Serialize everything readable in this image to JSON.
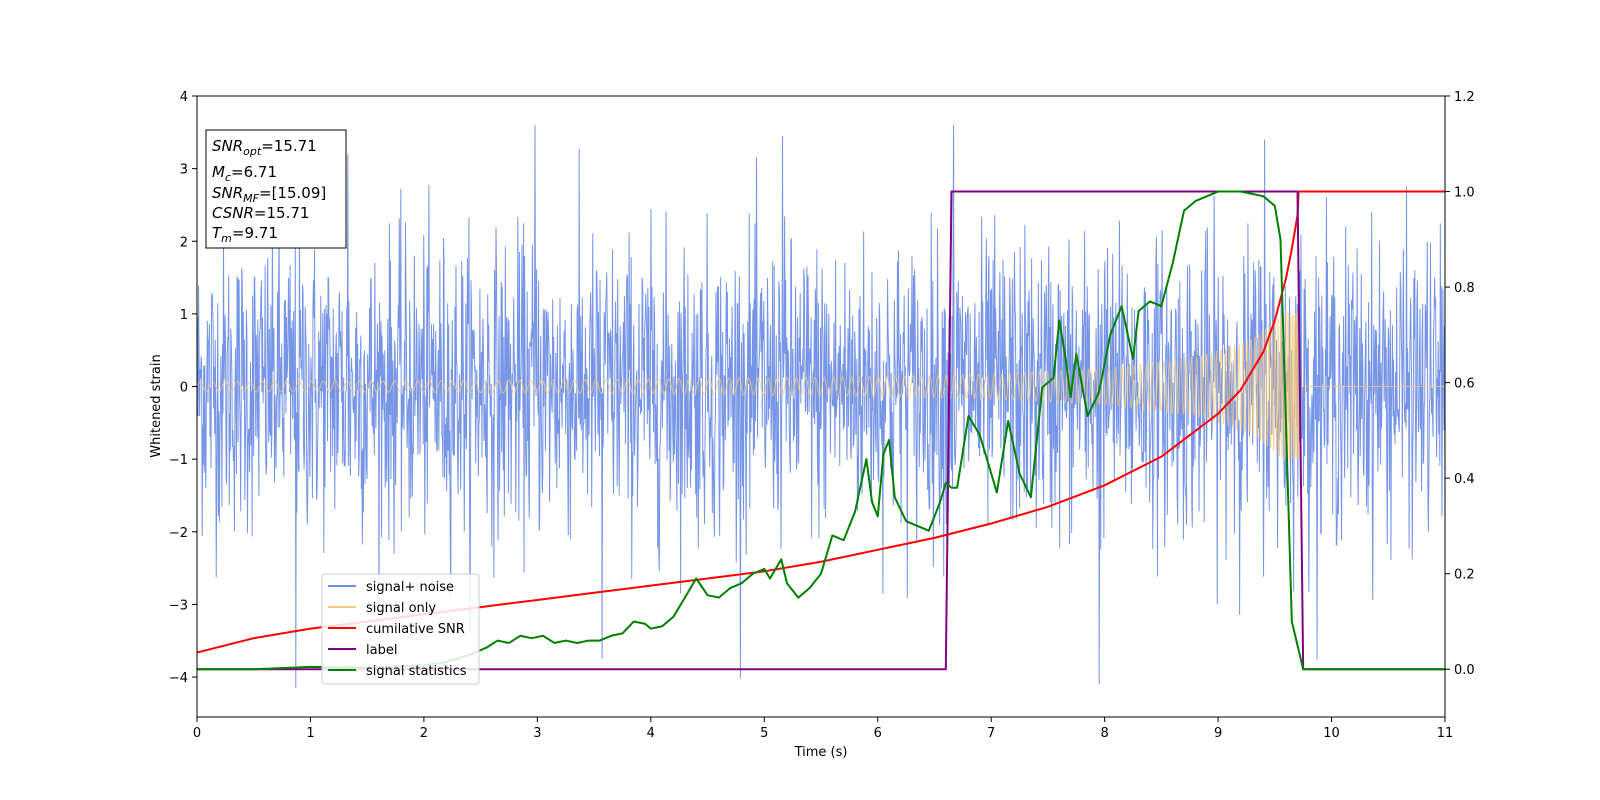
{
  "chart_data": {
    "type": "line",
    "xlabel": "Time (s)",
    "ylabel": "Whitened strain",
    "xlim": [
      0,
      11
    ],
    "ylim": [
      -4.55,
      4.0
    ],
    "y2lim": [
      -0.1,
      1.2
    ],
    "xticks": [
      0,
      1,
      2,
      3,
      4,
      5,
      6,
      7,
      8,
      9,
      10,
      11
    ],
    "yticks": [
      -4,
      -3,
      -2,
      -1,
      0,
      1,
      2,
      3,
      4
    ],
    "y2ticks": [
      "0.0",
      "0.2",
      "0.4",
      "0.6",
      "0.8",
      "1.0",
      "1.2"
    ],
    "grid": false,
    "legend_position": "lower-left",
    "annotation": [
      {
        "main": "SNR",
        "sub": "opt",
        "rest": "=15.71"
      },
      {
        "main": "M",
        "sub": "c",
        "rest": "=6.71"
      },
      {
        "main": "SNR",
        "sub": "MF",
        "rest": "=[15.09]"
      },
      {
        "main": "CSNR",
        "sub": "",
        "rest": "=15.71"
      },
      {
        "main": "T",
        "sub": "m",
        "rest": "=9.71"
      }
    ],
    "series": [
      {
        "name": "signal+ noise",
        "color": "#6f8fe6",
        "axis": "left",
        "noise_std": 1.0,
        "peak_spikes": [
          [
            0.87,
            -4.15
          ],
          [
            1.33,
            3.2
          ],
          [
            2.98,
            3.6
          ],
          [
            3.57,
            -3.75
          ],
          [
            5.16,
            3.45
          ],
          [
            6.67,
            3.6
          ],
          [
            7.95,
            -4.1
          ],
          [
            9.41,
            3.4
          ]
        ]
      },
      {
        "name": "signal only",
        "color": "#f5c97a",
        "axis": "left",
        "envelope": [
          [
            0,
            0.07
          ],
          [
            2,
            0.08
          ],
          [
            4,
            0.1
          ],
          [
            6,
            0.14
          ],
          [
            7,
            0.17
          ],
          [
            8,
            0.25
          ],
          [
            8.8,
            0.4
          ],
          [
            9.3,
            0.65
          ],
          [
            9.6,
            1.05
          ],
          [
            9.71,
            1.0
          ]
        ],
        "merger_time": 9.71
      },
      {
        "name": "cumilative SNR",
        "color": "#ff0000",
        "axis": "right",
        "x": [
          0,
          0.5,
          1,
          1.5,
          2,
          2.5,
          3,
          3.5,
          4,
          4.5,
          5,
          5.5,
          6,
          6.5,
          7,
          7.5,
          8,
          8.5,
          9,
          9.2,
          9.4,
          9.5,
          9.6,
          9.65,
          9.7,
          9.71,
          10,
          11
        ],
        "y": [
          0.035,
          0.065,
          0.085,
          0.1,
          0.115,
          0.13,
          0.145,
          0.16,
          0.175,
          0.19,
          0.205,
          0.225,
          0.25,
          0.275,
          0.305,
          0.34,
          0.385,
          0.445,
          0.535,
          0.585,
          0.665,
          0.73,
          0.82,
          0.88,
          0.95,
          1.0,
          1.0,
          1.0
        ]
      },
      {
        "name": "label",
        "color": "#800080",
        "axis": "right",
        "x": [
          0,
          6.6,
          6.65,
          9.7,
          9.75,
          11
        ],
        "y": [
          0,
          0,
          1,
          1,
          0,
          0
        ]
      },
      {
        "name": "signal statistics",
        "color": "#008000",
        "axis": "right",
        "x": [
          0,
          0.5,
          1,
          1.5,
          2,
          2.2,
          2.4,
          2.55,
          2.65,
          2.75,
          2.85,
          2.95,
          3.05,
          3.15,
          3.25,
          3.35,
          3.45,
          3.55,
          3.65,
          3.75,
          3.85,
          3.95,
          4.0,
          4.1,
          4.2,
          4.3,
          4.4,
          4.5,
          4.6,
          4.7,
          4.8,
          4.9,
          5.0,
          5.05,
          5.15,
          5.2,
          5.3,
          5.4,
          5.5,
          5.6,
          5.7,
          5.8,
          5.9,
          5.95,
          6.0,
          6.05,
          6.1,
          6.15,
          6.25,
          6.35,
          6.45,
          6.55,
          6.6,
          6.65,
          6.7,
          6.8,
          6.9,
          7.0,
          7.05,
          7.15,
          7.25,
          7.35,
          7.45,
          7.55,
          7.6,
          7.65,
          7.7,
          7.75,
          7.85,
          7.95,
          8.05,
          8.15,
          8.25,
          8.3,
          8.4,
          8.5,
          8.6,
          8.7,
          8.8,
          8.9,
          9.0,
          9.2,
          9.4,
          9.5,
          9.55,
          9.6,
          9.65,
          9.7,
          9.75,
          11
        ],
        "y": [
          0,
          0,
          0.005,
          0.003,
          0.008,
          0.015,
          0.03,
          0.045,
          0.06,
          0.055,
          0.07,
          0.065,
          0.07,
          0.055,
          0.06,
          0.055,
          0.06,
          0.06,
          0.07,
          0.075,
          0.1,
          0.095,
          0.085,
          0.09,
          0.11,
          0.15,
          0.19,
          0.155,
          0.15,
          0.17,
          0.18,
          0.2,
          0.21,
          0.19,
          0.23,
          0.18,
          0.15,
          0.17,
          0.2,
          0.28,
          0.27,
          0.33,
          0.44,
          0.35,
          0.32,
          0.45,
          0.48,
          0.36,
          0.31,
          0.3,
          0.29,
          0.35,
          0.39,
          0.38,
          0.38,
          0.53,
          0.49,
          0.41,
          0.37,
          0.52,
          0.41,
          0.36,
          0.59,
          0.61,
          0.73,
          0.66,
          0.57,
          0.66,
          0.53,
          0.58,
          0.7,
          0.76,
          0.65,
          0.75,
          0.77,
          0.76,
          0.85,
          0.96,
          0.98,
          0.99,
          1.0,
          1.0,
          0.99,
          0.97,
          0.9,
          0.5,
          0.1,
          0.05,
          0.0,
          0.0
        ]
      }
    ]
  }
}
